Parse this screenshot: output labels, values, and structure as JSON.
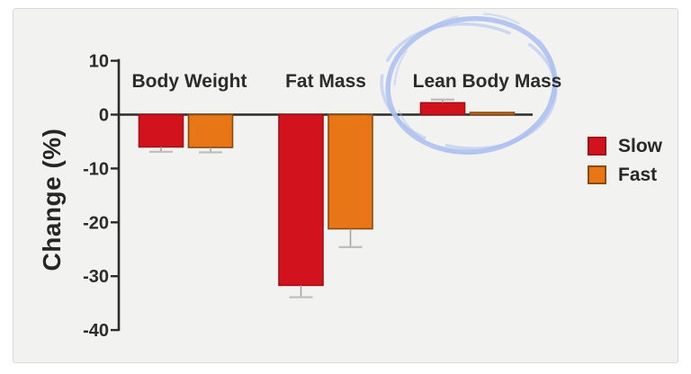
{
  "panel": {
    "background": "#f2f2f1",
    "border_color": "#d9d9d9"
  },
  "chart_data": {
    "type": "bar",
    "title": "",
    "xlabel": "",
    "ylabel": "Change (%)",
    "categories": [
      "Body Weight",
      "Fat Mass",
      "Lean Body Mass"
    ],
    "series": [
      {
        "name": "Slow",
        "color": "#d2131e",
        "border_color": "#a30f16",
        "values": [
          -6.0,
          -31.7,
          2.2
        ],
        "errors": [
          0.9,
          2.2,
          0.6
        ]
      },
      {
        "name": "Fast",
        "color": "#e87617",
        "border_color": "#8a4a10",
        "values": [
          -6.1,
          -21.2,
          0.4
        ],
        "errors": [
          0.9,
          3.4,
          0
        ]
      }
    ],
    "ylim": [
      -40,
      10
    ],
    "yticks": [
      10,
      0,
      -10,
      -20,
      -30,
      -40
    ],
    "grid": false,
    "legend_position": "right",
    "error_bar_color": "#a3a3a3",
    "error_cap_color": "#bdbdbd",
    "axis_color": "#2b2b2b",
    "annotation": {
      "type": "hand-drawn-circle",
      "target": "Lean Body Mass",
      "color": "#abc0ee"
    }
  }
}
